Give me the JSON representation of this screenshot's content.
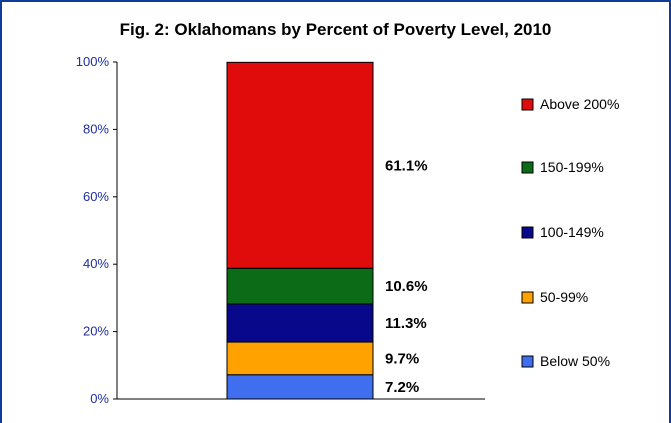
{
  "chart_data": {
    "type": "bar",
    "stacked": true,
    "title": "Fig. 2: Oklahomans by Percent of Poverty Level, 2010",
    "xlabel": "",
    "ylabel": "",
    "ylim": [
      0,
      100
    ],
    "y_ticks": [
      "0%",
      "20%",
      "40%",
      "60%",
      "80%",
      "100%"
    ],
    "grid": false,
    "legend_position": "right",
    "series": [
      {
        "name": "Below 50%",
        "value": 7.2,
        "label": "7.2%",
        "color": "#3f6fef"
      },
      {
        "name": "50-99%",
        "value": 9.7,
        "label": "9.7%",
        "color": "#ffa200"
      },
      {
        "name": "100-149%",
        "value": 11.3,
        "label": "11.3%",
        "color": "#08088a"
      },
      {
        "name": "150-199%",
        "value": 10.6,
        "label": "10.6%",
        "color": "#0b6b17"
      },
      {
        "name": "Above 200%",
        "value": 61.1,
        "label": "61.1%",
        "color": "#e00b0b"
      }
    ]
  }
}
